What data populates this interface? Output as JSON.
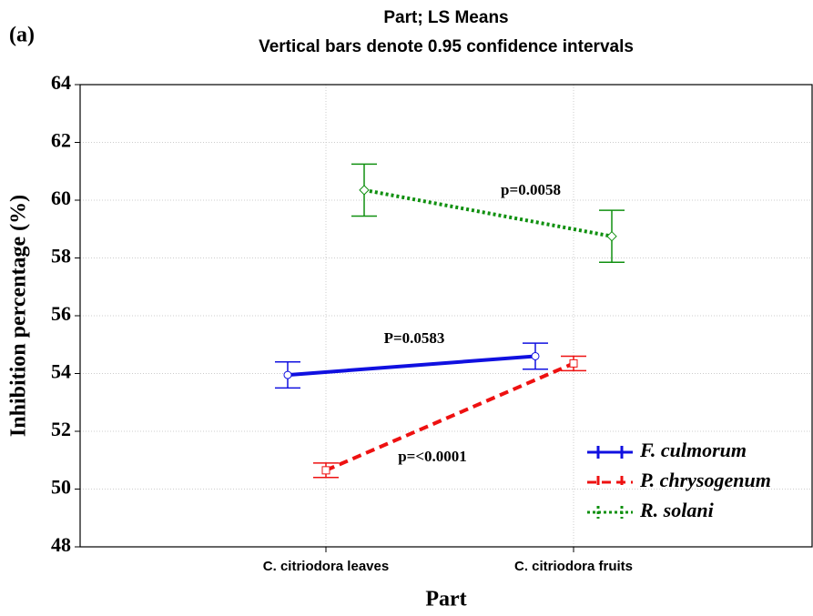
{
  "chart_data": {
    "type": "line",
    "panel_label": "(a)",
    "title": "Part; LS Means",
    "subtitle": "Vertical bars denote 0.95 confidence intervals",
    "x_label": "Part",
    "y_label": "Inhibition percentage (%)",
    "categories": [
      "C. citriodora leaves",
      "C. citriodora fruits"
    ],
    "series": [
      {
        "name": "F. culmorum",
        "color": "#1010e0",
        "linestyle": "solid",
        "values": [
          53.95,
          54.6
        ],
        "errors": [
          0.45,
          0.45
        ]
      },
      {
        "name": "P. chrysogenum",
        "color": "#ee1111",
        "linestyle": "dashed",
        "values": [
          50.65,
          54.35
        ],
        "errors": [
          0.25,
          0.25
        ]
      },
      {
        "name": "R. solani",
        "color": "#109010",
        "linestyle": "dotted",
        "values": [
          60.35,
          58.75
        ],
        "errors": [
          0.9,
          0.9
        ]
      }
    ],
    "annotations": [
      "p=0.0058",
      "P=0.0583",
      "p=<0.0001"
    ],
    "ylim": [
      48,
      64
    ],
    "yticks": [
      48,
      50,
      52,
      54,
      56,
      58,
      60,
      62,
      64
    ],
    "grid": true,
    "legend": "lower right"
  }
}
